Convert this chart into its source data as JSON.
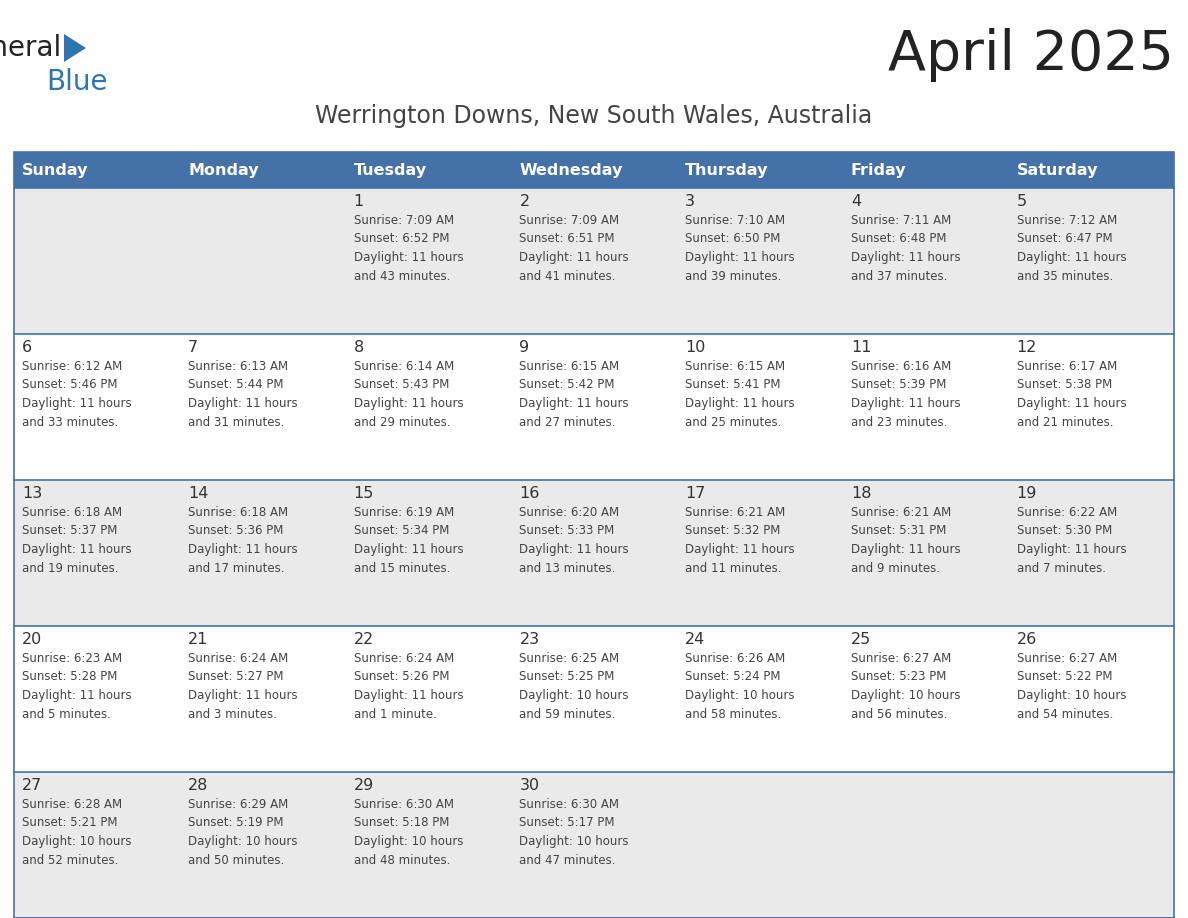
{
  "title": "April 2025",
  "subtitle": "Werrington Downs, New South Wales, Australia",
  "days_of_week": [
    "Sunday",
    "Monday",
    "Tuesday",
    "Wednesday",
    "Thursday",
    "Friday",
    "Saturday"
  ],
  "header_bg": "#4472A8",
  "header_text": "#FFFFFF",
  "row_bg_odd": "#EAEAEA",
  "row_bg_even": "#FFFFFF",
  "cell_text_color": "#444444",
  "day_num_color": "#333333",
  "border_color": "#4472A8",
  "title_color": "#222222",
  "subtitle_color": "#444444",
  "logo_general_color": "#222222",
  "logo_blue_color": "#2E75B6",
  "calendar": [
    [
      {
        "day": null,
        "info": ""
      },
      {
        "day": null,
        "info": ""
      },
      {
        "day": 1,
        "info": "Sunrise: 7:09 AM\nSunset: 6:52 PM\nDaylight: 11 hours\nand 43 minutes."
      },
      {
        "day": 2,
        "info": "Sunrise: 7:09 AM\nSunset: 6:51 PM\nDaylight: 11 hours\nand 41 minutes."
      },
      {
        "day": 3,
        "info": "Sunrise: 7:10 AM\nSunset: 6:50 PM\nDaylight: 11 hours\nand 39 minutes."
      },
      {
        "day": 4,
        "info": "Sunrise: 7:11 AM\nSunset: 6:48 PM\nDaylight: 11 hours\nand 37 minutes."
      },
      {
        "day": 5,
        "info": "Sunrise: 7:12 AM\nSunset: 6:47 PM\nDaylight: 11 hours\nand 35 minutes."
      }
    ],
    [
      {
        "day": 6,
        "info": "Sunrise: 6:12 AM\nSunset: 5:46 PM\nDaylight: 11 hours\nand 33 minutes."
      },
      {
        "day": 7,
        "info": "Sunrise: 6:13 AM\nSunset: 5:44 PM\nDaylight: 11 hours\nand 31 minutes."
      },
      {
        "day": 8,
        "info": "Sunrise: 6:14 AM\nSunset: 5:43 PM\nDaylight: 11 hours\nand 29 minutes."
      },
      {
        "day": 9,
        "info": "Sunrise: 6:15 AM\nSunset: 5:42 PM\nDaylight: 11 hours\nand 27 minutes."
      },
      {
        "day": 10,
        "info": "Sunrise: 6:15 AM\nSunset: 5:41 PM\nDaylight: 11 hours\nand 25 minutes."
      },
      {
        "day": 11,
        "info": "Sunrise: 6:16 AM\nSunset: 5:39 PM\nDaylight: 11 hours\nand 23 minutes."
      },
      {
        "day": 12,
        "info": "Sunrise: 6:17 AM\nSunset: 5:38 PM\nDaylight: 11 hours\nand 21 minutes."
      }
    ],
    [
      {
        "day": 13,
        "info": "Sunrise: 6:18 AM\nSunset: 5:37 PM\nDaylight: 11 hours\nand 19 minutes."
      },
      {
        "day": 14,
        "info": "Sunrise: 6:18 AM\nSunset: 5:36 PM\nDaylight: 11 hours\nand 17 minutes."
      },
      {
        "day": 15,
        "info": "Sunrise: 6:19 AM\nSunset: 5:34 PM\nDaylight: 11 hours\nand 15 minutes."
      },
      {
        "day": 16,
        "info": "Sunrise: 6:20 AM\nSunset: 5:33 PM\nDaylight: 11 hours\nand 13 minutes."
      },
      {
        "day": 17,
        "info": "Sunrise: 6:21 AM\nSunset: 5:32 PM\nDaylight: 11 hours\nand 11 minutes."
      },
      {
        "day": 18,
        "info": "Sunrise: 6:21 AM\nSunset: 5:31 PM\nDaylight: 11 hours\nand 9 minutes."
      },
      {
        "day": 19,
        "info": "Sunrise: 6:22 AM\nSunset: 5:30 PM\nDaylight: 11 hours\nand 7 minutes."
      }
    ],
    [
      {
        "day": 20,
        "info": "Sunrise: 6:23 AM\nSunset: 5:28 PM\nDaylight: 11 hours\nand 5 minutes."
      },
      {
        "day": 21,
        "info": "Sunrise: 6:24 AM\nSunset: 5:27 PM\nDaylight: 11 hours\nand 3 minutes."
      },
      {
        "day": 22,
        "info": "Sunrise: 6:24 AM\nSunset: 5:26 PM\nDaylight: 11 hours\nand 1 minute."
      },
      {
        "day": 23,
        "info": "Sunrise: 6:25 AM\nSunset: 5:25 PM\nDaylight: 10 hours\nand 59 minutes."
      },
      {
        "day": 24,
        "info": "Sunrise: 6:26 AM\nSunset: 5:24 PM\nDaylight: 10 hours\nand 58 minutes."
      },
      {
        "day": 25,
        "info": "Sunrise: 6:27 AM\nSunset: 5:23 PM\nDaylight: 10 hours\nand 56 minutes."
      },
      {
        "day": 26,
        "info": "Sunrise: 6:27 AM\nSunset: 5:22 PM\nDaylight: 10 hours\nand 54 minutes."
      }
    ],
    [
      {
        "day": 27,
        "info": "Sunrise: 6:28 AM\nSunset: 5:21 PM\nDaylight: 10 hours\nand 52 minutes."
      },
      {
        "day": 28,
        "info": "Sunrise: 6:29 AM\nSunset: 5:19 PM\nDaylight: 10 hours\nand 50 minutes."
      },
      {
        "day": 29,
        "info": "Sunrise: 6:30 AM\nSunset: 5:18 PM\nDaylight: 10 hours\nand 48 minutes."
      },
      {
        "day": 30,
        "info": "Sunrise: 6:30 AM\nSunset: 5:17 PM\nDaylight: 10 hours\nand 47 minutes."
      },
      {
        "day": null,
        "info": ""
      },
      {
        "day": null,
        "info": ""
      },
      {
        "day": null,
        "info": ""
      }
    ]
  ]
}
